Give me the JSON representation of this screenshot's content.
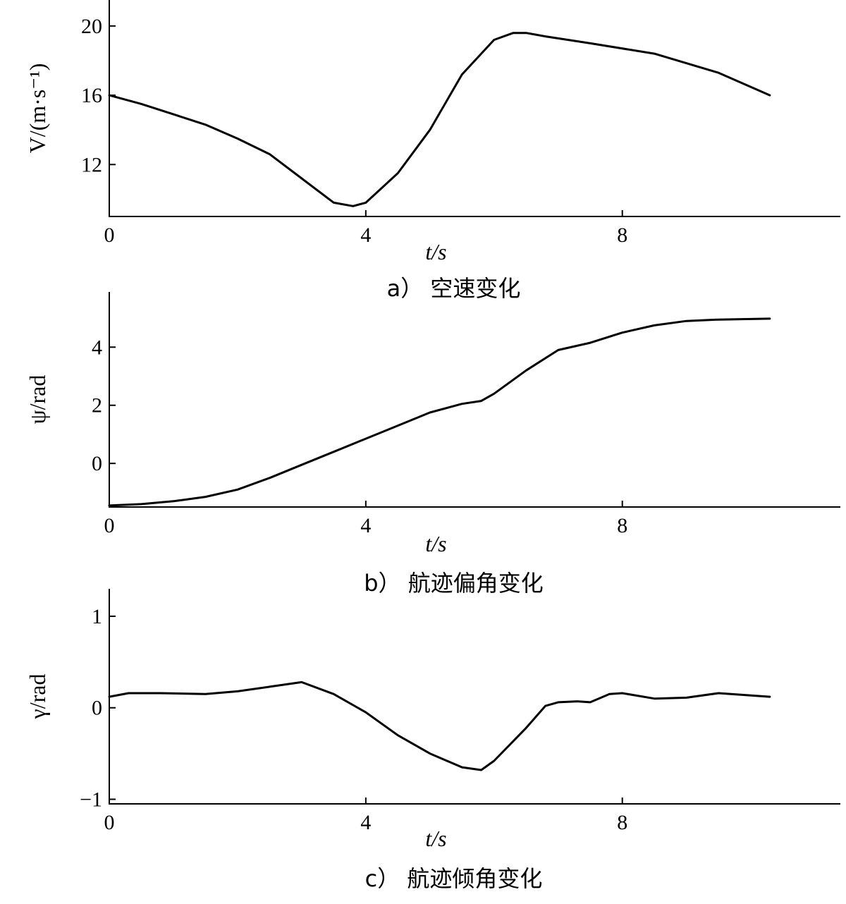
{
  "chart_data": [
    {
      "type": "line",
      "panel": "a",
      "caption": "a） 空速变化",
      "xlabel": "t/s",
      "ylabel": "V/(m·s⁻¹)",
      "xlim": [
        0,
        11.4
      ],
      "ylim": [
        9.0,
        21.5
      ],
      "xticks": [
        0,
        4,
        8
      ],
      "yticks": [
        12,
        16,
        20
      ],
      "x": [
        0,
        0.5,
        1.0,
        1.5,
        2.0,
        2.5,
        3.0,
        3.5,
        3.8,
        4.0,
        4.5,
        5.0,
        5.5,
        6.0,
        6.3,
        6.5,
        6.8,
        7.5,
        8.5,
        9.5,
        10.3
      ],
      "y": [
        16.0,
        15.5,
        14.9,
        14.3,
        13.5,
        12.6,
        11.2,
        9.8,
        9.6,
        9.8,
        11.5,
        14.0,
        17.2,
        19.2,
        19.6,
        19.6,
        19.4,
        19.0,
        18.4,
        17.3,
        16.0
      ]
    },
    {
      "type": "line",
      "panel": "b",
      "caption": "b） 航迹偏角变化",
      "xlabel": "t/s",
      "ylabel": "ψ/rad",
      "xlim": [
        0,
        11.4
      ],
      "ylim": [
        -1.5,
        5.9
      ],
      "xticks": [
        0,
        4,
        8
      ],
      "yticks": [
        0,
        2,
        4
      ],
      "x": [
        0,
        0.5,
        1.0,
        1.5,
        2.0,
        2.5,
        3.0,
        3.5,
        4.0,
        4.5,
        5.0,
        5.5,
        5.8,
        6.0,
        6.5,
        7.0,
        7.5,
        8.0,
        8.5,
        9.0,
        9.5,
        10.3
      ],
      "y": [
        -1.45,
        -1.4,
        -1.3,
        -1.15,
        -0.9,
        -0.5,
        -0.05,
        0.4,
        0.85,
        1.3,
        1.75,
        2.05,
        2.15,
        2.4,
        3.2,
        3.9,
        4.15,
        4.5,
        4.75,
        4.9,
        4.95,
        4.98
      ]
    },
    {
      "type": "line",
      "panel": "c",
      "caption": "c） 航迹倾角变化",
      "xlabel": "t/s",
      "ylabel": "γ/rad",
      "xlim": [
        0,
        11.4
      ],
      "ylim": [
        -1.05,
        1.3
      ],
      "xticks": [
        0,
        4,
        8
      ],
      "yticks": [
        -1,
        0,
        1
      ],
      "x": [
        0,
        0.3,
        0.8,
        1.5,
        2.0,
        2.5,
        3.0,
        3.5,
        4.0,
        4.5,
        5.0,
        5.5,
        5.8,
        6.0,
        6.5,
        6.8,
        7.0,
        7.3,
        7.5,
        7.8,
        8.0,
        8.5,
        9.0,
        9.5,
        10.3
      ],
      "y": [
        0.12,
        0.16,
        0.16,
        0.15,
        0.18,
        0.23,
        0.28,
        0.15,
        -0.05,
        -0.3,
        -0.5,
        -0.65,
        -0.68,
        -0.58,
        -0.22,
        0.02,
        0.06,
        0.07,
        0.06,
        0.15,
        0.16,
        0.1,
        0.11,
        0.16,
        0.12
      ]
    }
  ]
}
